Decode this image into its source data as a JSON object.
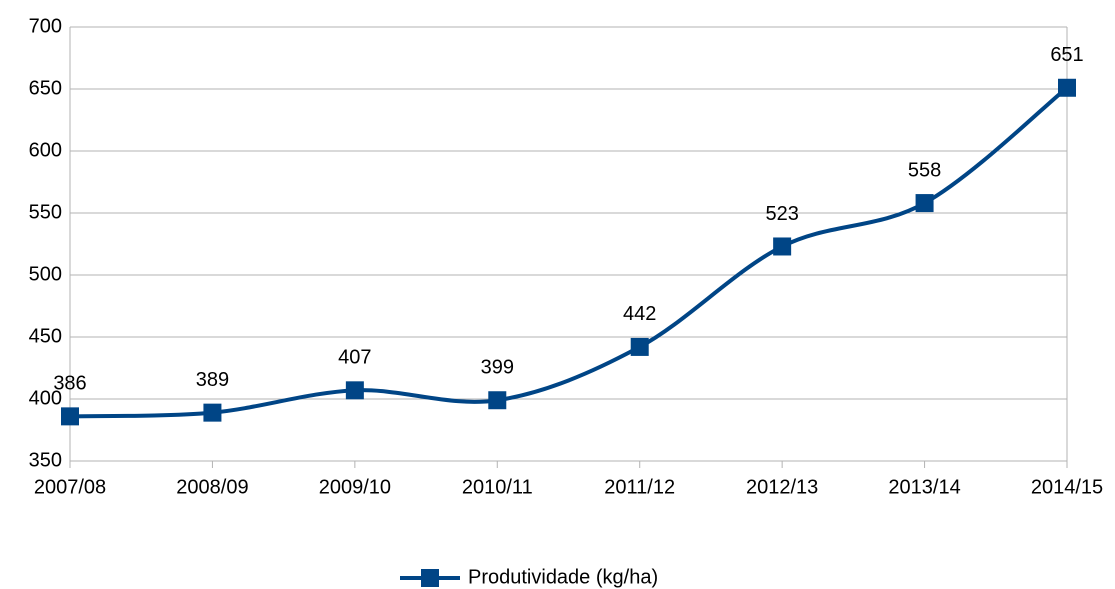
{
  "chart_data": {
    "type": "line",
    "categories": [
      "2007/08",
      "2008/09",
      "2009/10",
      "2010/11",
      "2011/12",
      "2012/13",
      "2013/14",
      "2014/15"
    ],
    "series": [
      {
        "name": "Produtividade (kg/ha)",
        "color": "#004586",
        "values": [
          386,
          389,
          407,
          399,
          442,
          523,
          558,
          651
        ]
      }
    ],
    "ylim": [
      350,
      700
    ],
    "yticks": [
      350,
      400,
      450,
      500,
      550,
      600,
      650,
      700
    ],
    "grid": true,
    "smooth": true,
    "legend": "bottom"
  }
}
